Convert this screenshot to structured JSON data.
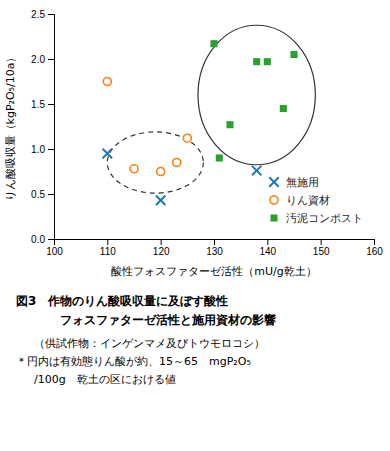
{
  "chart_data": {
    "type": "scatter",
    "title": [
      "図3　作物のりん酸吸収量に及ぼす酸性",
      "フォスファターゼ活性と施用資材の影響"
    ],
    "notes": [
      "（供試作物：インゲンマメ及びトウモロコシ）",
      "＊円内は有効態りん酸が約、15～65　mgP₂O₅",
      "/100g　乾土の区における値"
    ],
    "xlabel": "酸性フォスファターゼ活性（mU/g乾土）",
    "ylabel": "りん酸吸収量（kgP₂O₅/10a）",
    "xlim": [
      100,
      160
    ],
    "ylim": [
      0,
      2.5
    ],
    "xticks": [
      100,
      110,
      120,
      130,
      140,
      150,
      160
    ],
    "yticks": [
      {
        "value": 0,
        "label": "0.0"
      },
      0.5,
      {
        "value": 1.0,
        "label": "1.0"
      },
      1.5,
      {
        "value": 2.0,
        "label": "2.0"
      },
      {
        "value": 2.5,
        "label": "2.5"
      }
    ],
    "legend": "lower right",
    "series": [
      {
        "name": "無施用",
        "marker": "cross",
        "x": [
          110,
          120,
          138
        ],
        "values": [
          0.95,
          0.43,
          0.76
        ]
      },
      {
        "name": "りん資材",
        "marker": "open-circle",
        "x": [
          110,
          115,
          120,
          123,
          125
        ],
        "values": [
          1.75,
          0.78,
          0.75,
          0.85,
          1.12
        ]
      },
      {
        "name": "汚泥コンポスト",
        "marker": "square",
        "x": [
          130,
          131,
          133,
          138,
          140,
          143,
          145
        ],
        "values": [
          2.17,
          0.9,
          1.27,
          1.97,
          1.97,
          1.45,
          2.05
        ]
      }
    ],
    "ellipses": [
      {
        "cx": 119,
        "cy": 0.85,
        "width": 18,
        "height": 0.68,
        "line_style": "dashed"
      },
      {
        "cx": 138,
        "cy": 1.6,
        "width": 22,
        "height": 1.55,
        "line_style": "solid"
      }
    ]
  }
}
